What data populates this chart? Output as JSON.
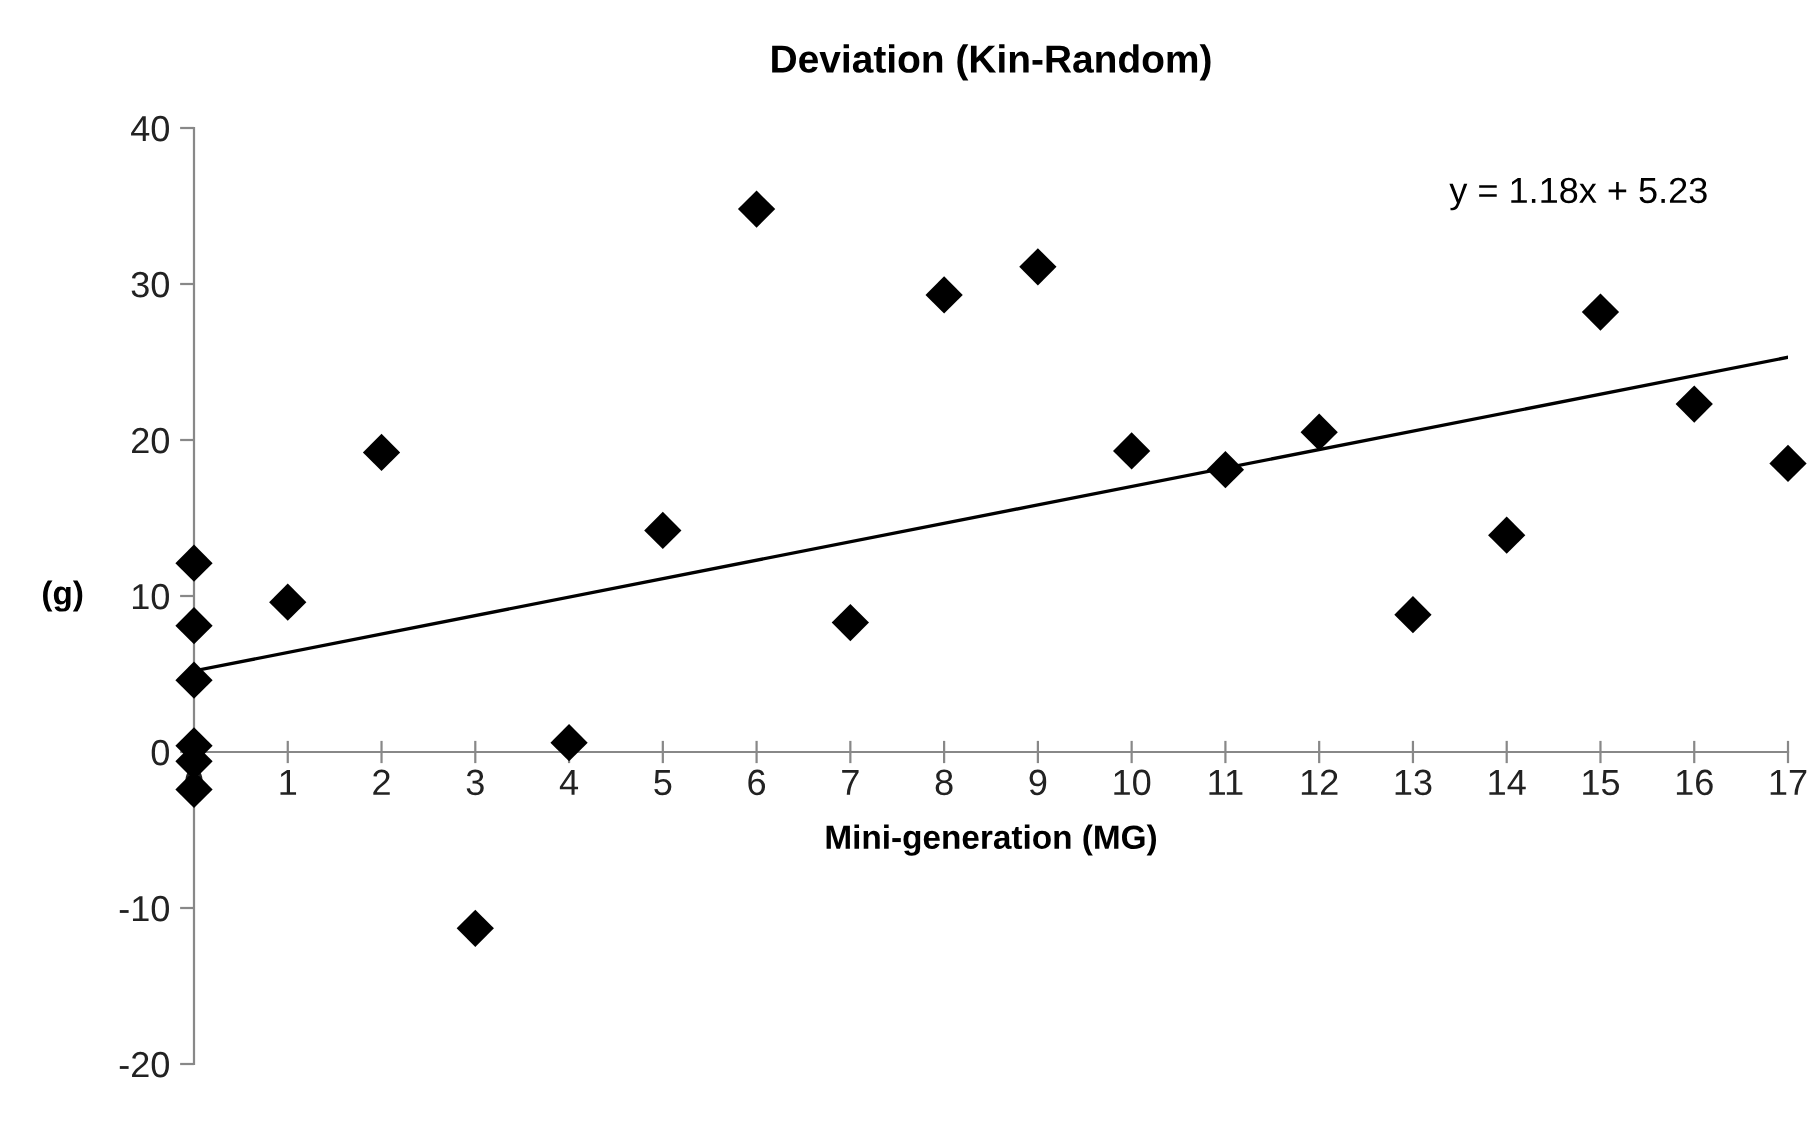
{
  "chart_data": {
    "type": "scatter",
    "title": "Deviation (Kin-Random)",
    "xlabel": "Mini-generation (MG)",
    "ylabel": "(g)",
    "series": [
      {
        "color": "#000000",
        "marker": "diamond",
        "x": [
          0,
          0,
          0,
          0,
          0,
          0,
          1,
          2,
          3,
          4,
          5,
          6,
          7,
          8,
          9,
          10,
          11,
          12,
          13,
          14,
          15,
          16,
          17
        ],
        "values": [
          12.1,
          8.1,
          4.6,
          0.4,
          -0.6,
          -2.4,
          9.6,
          19.2,
          -11.3,
          0.6,
          14.2,
          34.8,
          8.3,
          29.3,
          31.1,
          19.3,
          18.1,
          20.5,
          8.8,
          13.9,
          28.2,
          22.3,
          18.5
        ]
      },
      {
        "type": "line",
        "color": "#000000",
        "x": [
          0,
          17
        ],
        "values": [
          5.2,
          25.3
        ]
      }
    ],
    "annotations": [
      "y = 1.18x + 5.23"
    ],
    "xlim": [
      0,
      17
    ],
    "xticks": [
      0,
      1,
      2,
      3,
      4,
      5,
      6,
      7,
      8,
      9,
      10,
      11,
      12,
      13,
      14,
      15,
      16,
      17
    ],
    "ylim": [
      -20,
      40
    ],
    "yticks": [
      -20,
      -10,
      0,
      10,
      20,
      30,
      40
    ],
    "grid": false,
    "legend": false
  }
}
